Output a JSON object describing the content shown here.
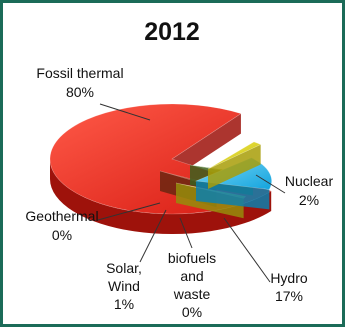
{
  "chart_data": {
    "type": "pie",
    "title": "2012",
    "slices": [
      {
        "name": "Fossil thermal",
        "value": 80,
        "label": "80%",
        "color": "#e3241c"
      },
      {
        "name": "Nuclear",
        "value": 2,
        "label": "2%",
        "color": "#e6da17"
      },
      {
        "name": "Hydro",
        "value": 17,
        "label": "17%",
        "color": "#25b6ea"
      },
      {
        "name": "biofuels and waste",
        "value": 0,
        "label": "0%",
        "color": "#5b8a2e"
      },
      {
        "name": "Solar, Wind",
        "value": 1,
        "label": "1%",
        "color": "#c9c11a"
      },
      {
        "name": "Geothermal",
        "value": 0,
        "label": "0%",
        "color": "#9a3a1a"
      }
    ],
    "style": "3d-exploded",
    "border_color": "#1b6b58"
  }
}
